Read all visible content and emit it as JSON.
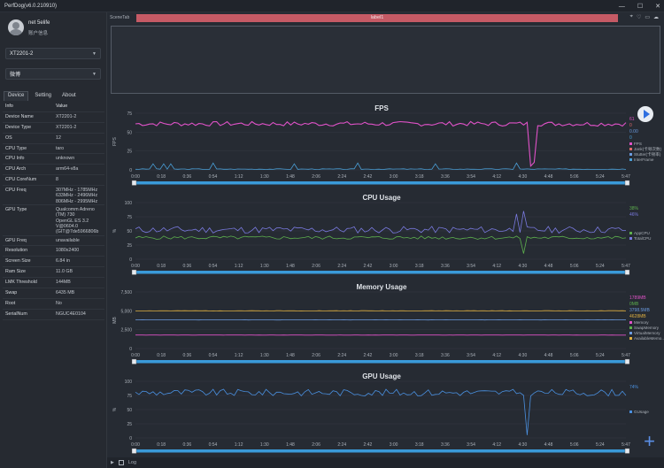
{
  "app": {
    "title": "PerfDog(v6.0.210910)"
  },
  "window_controls": {
    "minimize": "—",
    "maximize": "☐",
    "close": "✕"
  },
  "user": {
    "name": "net 5elife",
    "sub": "账户信息"
  },
  "device_select": {
    "value": "XT2201-2"
  },
  "app_select": {
    "value": "微博"
  },
  "tabs": [
    {
      "label": "Device"
    },
    {
      "label": "Setting"
    },
    {
      "label": "About"
    }
  ],
  "info_table": {
    "headers": [
      "Info",
      "Value"
    ],
    "rows": [
      [
        "Device Name",
        "XT2201-2"
      ],
      [
        "Device Type",
        "XT2201-2"
      ],
      [
        "OS",
        "12"
      ],
      [
        "CPU Type",
        "taro"
      ],
      [
        "CPU Info",
        "unknown"
      ],
      [
        "CPU Arch",
        "arm64-v8a"
      ],
      [
        "CPU CoreNum",
        "8"
      ],
      [
        "CPU Freq",
        "307MHz - 1785MHz\n633MHz - 2496MHz\n806MHz - 2995MHz"
      ],
      [
        "GPU Type",
        "Qualcomm Adreno (TM) 730\nOpenGL ES 3.2 V@0604.0 (GIT@7de5966806b"
      ],
      [
        "GPU Freq",
        "unavailable"
      ],
      [
        "Resolution",
        "1080x2400"
      ],
      [
        "Screen Size",
        "6.84 in"
      ],
      [
        "Ram Size",
        "11.0 GB"
      ],
      [
        "LMK Threshold",
        "144MB"
      ],
      [
        "Swap",
        "6435 MB"
      ],
      [
        "Root",
        "No"
      ],
      [
        "SerialNum",
        "NGUC4E0104"
      ]
    ]
  },
  "scene": {
    "label": "SceneTab",
    "bar": "label1"
  },
  "time_ticks": [
    "0:00",
    "0:18",
    "0:36",
    "0:54",
    "1:12",
    "1:30",
    "1:48",
    "2:06",
    "2:24",
    "2:42",
    "3:00",
    "3:18",
    "3:36",
    "3:54",
    "4:12",
    "4:30",
    "4:48",
    "5:06",
    "5:24",
    "5:47"
  ],
  "charts": [
    {
      "title": "FPS",
      "ylabel": "FPS",
      "yticks": [
        "0",
        "25",
        "50",
        "75"
      ],
      "ymax": 75,
      "legend": [
        {
          "name": "FPS",
          "color": "#e052c8"
        },
        {
          "name": "Jank(卡顿次数)",
          "color": "#e06a6a"
        },
        {
          "name": "Stutter(卡顿率)",
          "color": "#6b9be0"
        },
        {
          "name": "InterFrame",
          "color": "#4aa0d8"
        }
      ],
      "values_right": [
        {
          "text": "61",
          "color": "#e052c8"
        },
        {
          "text": "0",
          "color": "#e06a6a"
        },
        {
          "text": "0.00",
          "color": "#6b9be0"
        },
        {
          "text": "0",
          "color": "#4aa0d8"
        }
      ]
    },
    {
      "title": "CPU Usage",
      "ylabel": "%",
      "yticks": [
        "0",
        "25",
        "50",
        "75",
        "100"
      ],
      "ymax": 100,
      "legend": [
        {
          "name": "AppCPU",
          "color": "#5db04d"
        },
        {
          "name": "TotalCPU",
          "color": "#7a7ae0"
        }
      ],
      "values_right": [
        {
          "text": "38%",
          "color": "#5db04d"
        },
        {
          "text": "46%",
          "color": "#7a7ae0"
        }
      ]
    },
    {
      "title": "Memory Usage",
      "ylabel": "MB",
      "yticks": [
        "0",
        "2,500",
        "5,000",
        "7,500"
      ],
      "ymax": 7500,
      "legend": [
        {
          "name": "Memory",
          "color": "#e052c8"
        },
        {
          "name": "SwapMemory",
          "color": "#5db04d"
        },
        {
          "name": "VirtualMemory",
          "color": "#6b9be0"
        },
        {
          "name": "AvailableMemo...",
          "color": "#e0b040"
        }
      ],
      "values_right": [
        {
          "text": "1789MB",
          "color": "#e052c8"
        },
        {
          "text": "0MB",
          "color": "#5db04d"
        },
        {
          "text": "3798.5MB",
          "color": "#6b9be0"
        },
        {
          "text": "4628MB",
          "color": "#e0b040"
        }
      ]
    },
    {
      "title": "GPU Usage",
      "ylabel": "%",
      "yticks": [
        "0",
        "25",
        "50",
        "75",
        "100"
      ],
      "ymax": 100,
      "legend": [
        {
          "name": "GUsage",
          "color": "#4a90e0"
        }
      ],
      "values_right": [
        {
          "text": "74%",
          "color": "#4a90e0"
        }
      ]
    }
  ],
  "log": {
    "label": "Log"
  }
}
